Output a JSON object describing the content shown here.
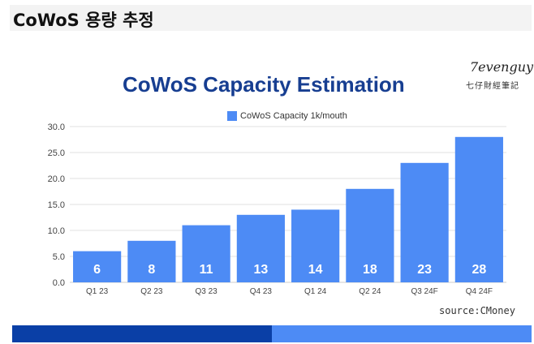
{
  "page": {
    "heading": "CoWoS 용량 추정"
  },
  "brand": {
    "name": "7evenguy",
    "subtitle": "七仔財經筆記"
  },
  "colors": {
    "bar": "#4d8bf5",
    "title": "#173e91",
    "footer_dark": "#0a3fa6",
    "footer_light": "#4d8bf5",
    "grid": "#e2e2e2",
    "bar_label": "#ffffff"
  },
  "source": "source:CMoney",
  "chart_data": {
    "type": "bar",
    "title": "CoWoS Capacity Estimation",
    "xlabel": "",
    "ylabel": "",
    "categories": [
      "Q1 23",
      "Q2 23",
      "Q3 23",
      "Q4 23",
      "Q1 24",
      "Q2 24",
      "Q3 24F",
      "Q4 24F"
    ],
    "series": [
      {
        "name": "CoWoS Capacity 1k/mouth",
        "values": [
          6,
          8,
          11,
          13,
          14,
          18,
          23,
          28
        ]
      }
    ],
    "data_labels": [
      "6",
      "8",
      "11",
      "13",
      "14",
      "18",
      "23",
      "28"
    ],
    "y_ticks": [
      "0.0",
      "5.0",
      "10.0",
      "15.0",
      "20.0",
      "25.0",
      "30.0"
    ],
    "ylim": [
      0,
      30
    ],
    "grid": true,
    "legend_position": "top"
  }
}
